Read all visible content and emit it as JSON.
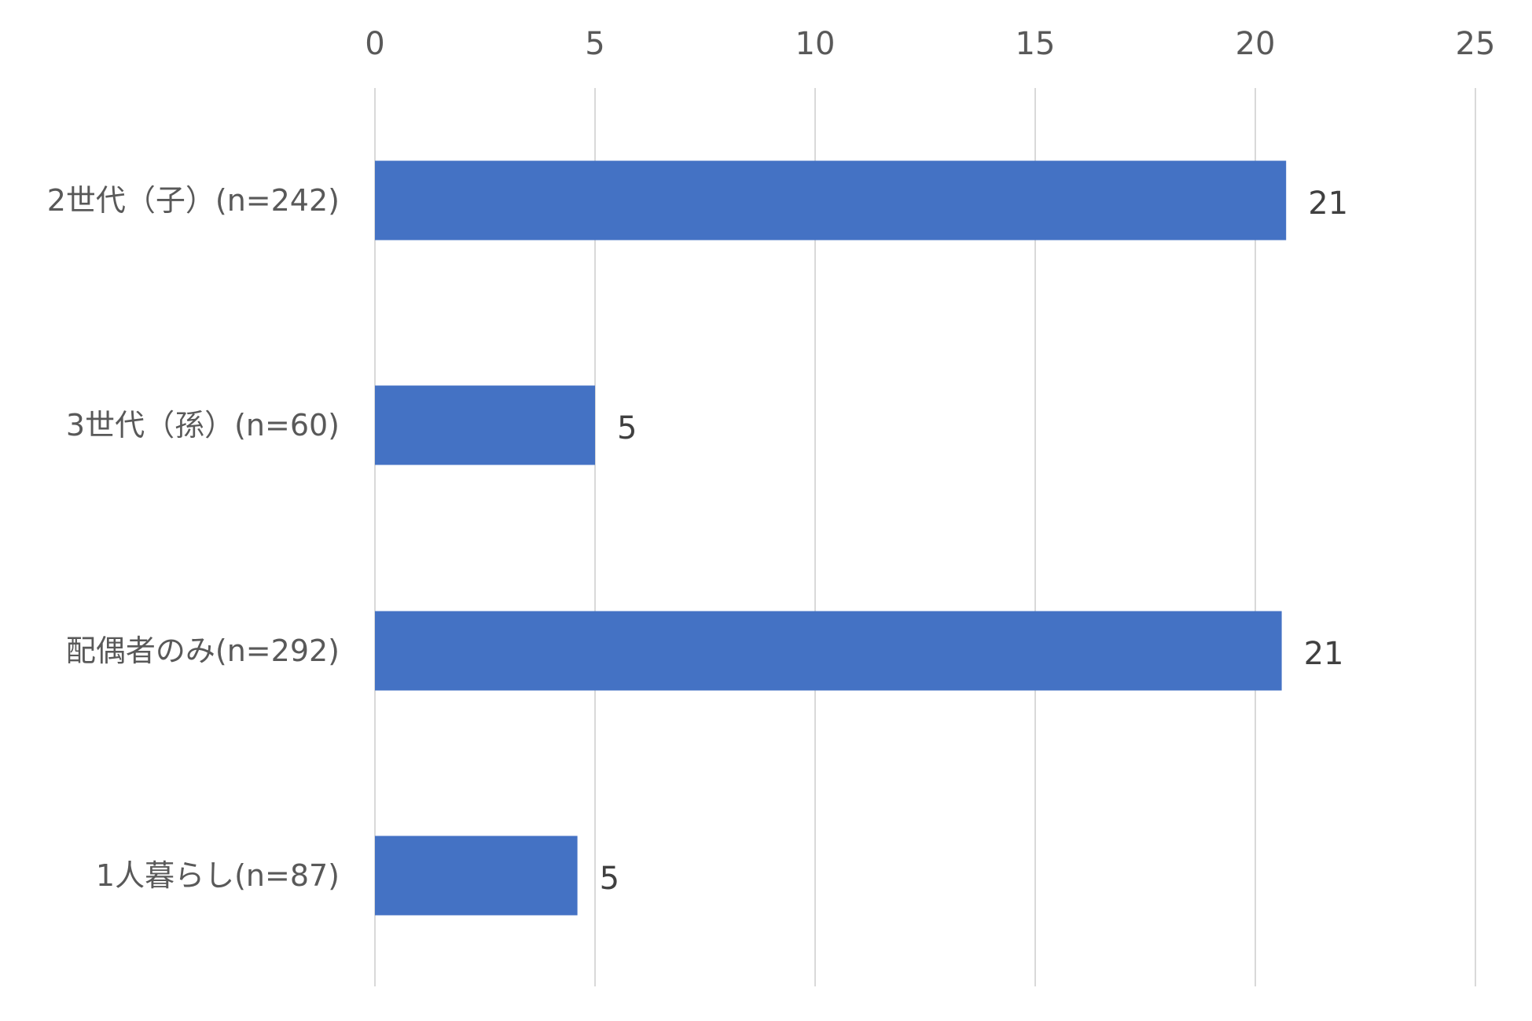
{
  "chart_data": {
    "type": "bar",
    "orientation": "horizontal",
    "title": "",
    "xlabel": "",
    "ylabel": "",
    "xlim": [
      0,
      25
    ],
    "x_ticks": [
      0,
      5,
      10,
      15,
      20,
      25
    ],
    "x_tick_labels": [
      "0",
      "5",
      "10",
      "15",
      "20",
      "25"
    ],
    "x_axis_position": "top",
    "grid": true,
    "legend": "none",
    "categories": [
      "2世代（子）(n=242)",
      "3世代（孫）(n=60)",
      "配偶者のみ(n=292)",
      "1人暮らし(n=87)"
    ],
    "values": [
      20.7,
      5.0,
      20.6,
      4.6
    ],
    "data_labels": [
      "21",
      "5",
      "21",
      "5"
    ],
    "colors": {
      "bar": "#4472C4",
      "grid": "#D9D9D9",
      "tick_text": "#595959",
      "data_label_text": "#404040"
    }
  }
}
